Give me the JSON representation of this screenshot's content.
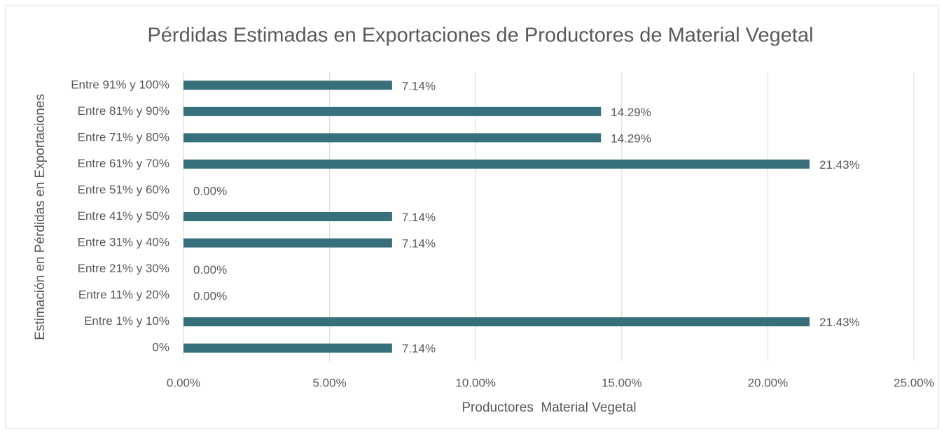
{
  "chart_data": {
    "type": "barh",
    "title": "Pérdidas Estimadas en Exportaciones de Productores de Material Vegetal",
    "x_label": "Productores  Material Vegetal",
    "y_label": "Estimación en Pérdidas en Exportaciones",
    "categories": [
      "0%",
      "Entre 1% y 10%",
      "Entre 11% y 20%",
      "Entre 21% y 30%",
      "Entre 31% y 40%",
      "Entre 41% y 50%",
      "Entre 51% y 60%",
      "Entre 61% y 70%",
      "Entre 71% y 80%",
      "Entre 81% y 90%",
      "Entre 91% y 100%"
    ],
    "values": [
      7.14,
      21.43,
      0,
      0,
      7.14,
      7.14,
      0,
      21.43,
      14.29,
      14.29,
      7.14
    ],
    "value_labels": [
      "7.14%",
      "21.43%",
      "0.00%",
      "0.00%",
      "7.14%",
      "7.14%",
      "0.00%",
      "21.43%",
      "14.29%",
      "14.29%",
      "7.14%"
    ],
    "color": "#376f7a",
    "xlim": [
      0,
      25
    ],
    "xticks": [
      {
        "value": 0,
        "label": "0.00%"
      },
      {
        "value": 5,
        "label": "5.00%"
      },
      {
        "value": 10,
        "label": "10.00%"
      },
      {
        "value": 15,
        "label": "15.00%"
      },
      {
        "value": 20,
        "label": "20.00%"
      },
      {
        "value": 25,
        "label": "25.00%"
      }
    ],
    "grid": true
  }
}
